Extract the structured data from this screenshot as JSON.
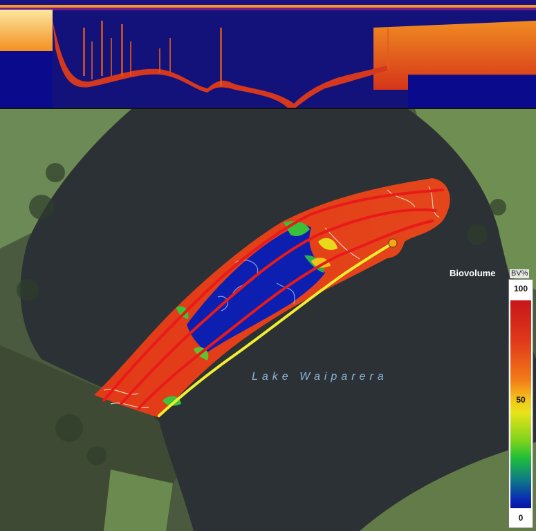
{
  "map": {
    "lake_name": "Lake Waiparera"
  },
  "legend": {
    "title": "Biovolume",
    "unit": "BV%",
    "ticks": {
      "max": "100",
      "mid": "50",
      "min": "0"
    },
    "colors": {
      "high": "#c8161a",
      "mid": "#e8e41a",
      "low": "#0616a0"
    }
  },
  "colors": {
    "track": "#e81a1a",
    "current_track": "#f2ee30",
    "current_position": "#f2a81a",
    "low_biovolume": "#0d1fb0"
  }
}
